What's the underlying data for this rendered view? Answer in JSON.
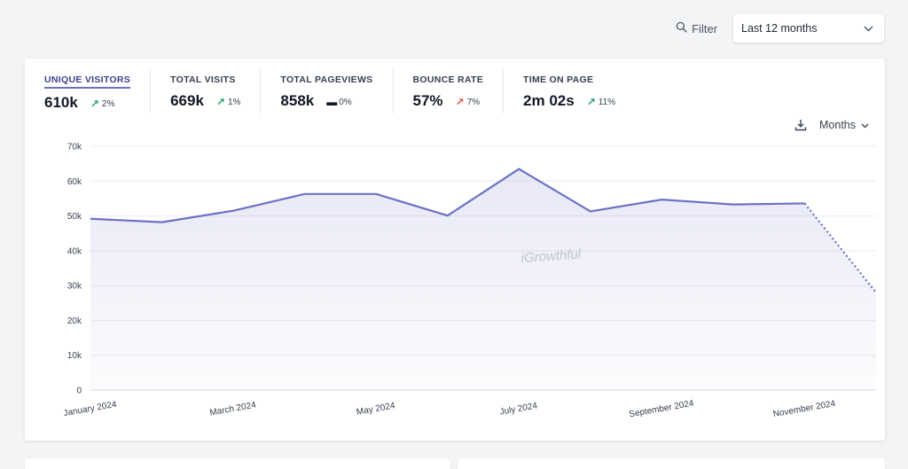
{
  "topbar": {
    "filter_label": "Filter",
    "period_value": "Last 12 months"
  },
  "metrics": [
    {
      "label": "UNIQUE VISITORS",
      "value": "610k",
      "change": "2%",
      "trend": "up-green"
    },
    {
      "label": "TOTAL VISITS",
      "value": "669k",
      "change": "1%",
      "trend": "up-green"
    },
    {
      "label": "TOTAL PAGEVIEWS",
      "value": "858k",
      "change": "0%",
      "trend": "flat"
    },
    {
      "label": "BOUNCE RATE",
      "value": "57%",
      "change": "7%",
      "trend": "up-red"
    },
    {
      "label": "TIME ON PAGE",
      "value": "2m 02s",
      "change": "11%",
      "trend": "up-green"
    }
  ],
  "chart_tools": {
    "interval_label": "Months"
  },
  "colors": {
    "line": "#6b72c4",
    "fill": "#eef0fa",
    "grid": "#ececf0",
    "green": "#22a06b",
    "red": "#e05a47"
  },
  "chart_data": {
    "type": "area",
    "title": "",
    "xlabel": "",
    "ylabel": "",
    "x": [
      "2024-01",
      "2024-02",
      "2024-03",
      "2024-04",
      "2024-05",
      "2024-06",
      "2024-07",
      "2024-08",
      "2024-09",
      "2024-10",
      "2024-11",
      "2024-12"
    ],
    "x_tick_labels": [
      "January 2024",
      "March 2024",
      "May 2024",
      "July 2024",
      "September 2024",
      "November 2024"
    ],
    "x_tick_indices": [
      0,
      2,
      4,
      6,
      8,
      10
    ],
    "y_ticks": [
      "0",
      "10k",
      "20k",
      "30k",
      "40k",
      "50k",
      "60k",
      "70k"
    ],
    "ylim": [
      0,
      70000
    ],
    "series": [
      {
        "values": [
          49200,
          48200,
          51500,
          56300,
          56300,
          50100,
          63500,
          51300,
          54700,
          53300,
          53600,
          28000
        ]
      }
    ],
    "projected_from_index": 10,
    "watermark": "iGrowthful",
    "grid": true
  }
}
